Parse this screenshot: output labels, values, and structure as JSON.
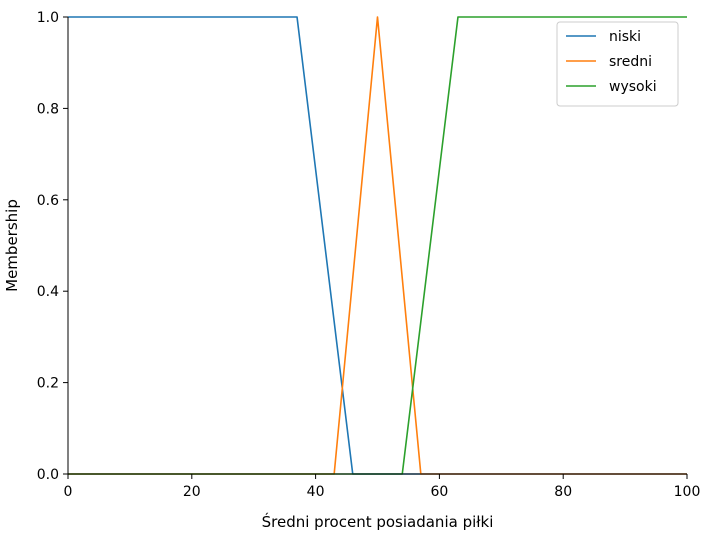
{
  "chart_data": {
    "type": "line",
    "title": "",
    "xlabel": "Średni procent posiadania piłki",
    "ylabel": "Membership",
    "xlim": [
      0,
      100
    ],
    "ylim": [
      0,
      1
    ],
    "x_ticks": [
      0,
      20,
      40,
      60,
      80,
      100
    ],
    "y_ticks": [
      0.0,
      0.2,
      0.4,
      0.6,
      0.8,
      1.0
    ],
    "x_tick_labels": [
      "0",
      "20",
      "40",
      "60",
      "80",
      "100"
    ],
    "y_tick_labels": [
      "0.0",
      "0.2",
      "0.4",
      "0.6",
      "0.8",
      "1.0"
    ],
    "grid": false,
    "legend_position": "top-right",
    "series": [
      {
        "name": "niski",
        "color": "#1f77b4",
        "x": [
          0,
          37,
          46,
          100
        ],
        "y": [
          1,
          1,
          0,
          0
        ]
      },
      {
        "name": "sredni",
        "color": "#ff7f0e",
        "x": [
          0,
          43,
          50,
          57,
          100
        ],
        "y": [
          0,
          0,
          1,
          0,
          0
        ]
      },
      {
        "name": "wysoki",
        "color": "#2ca02c",
        "x": [
          0,
          54,
          63,
          100
        ],
        "y": [
          0,
          0,
          1,
          1
        ]
      }
    ]
  }
}
